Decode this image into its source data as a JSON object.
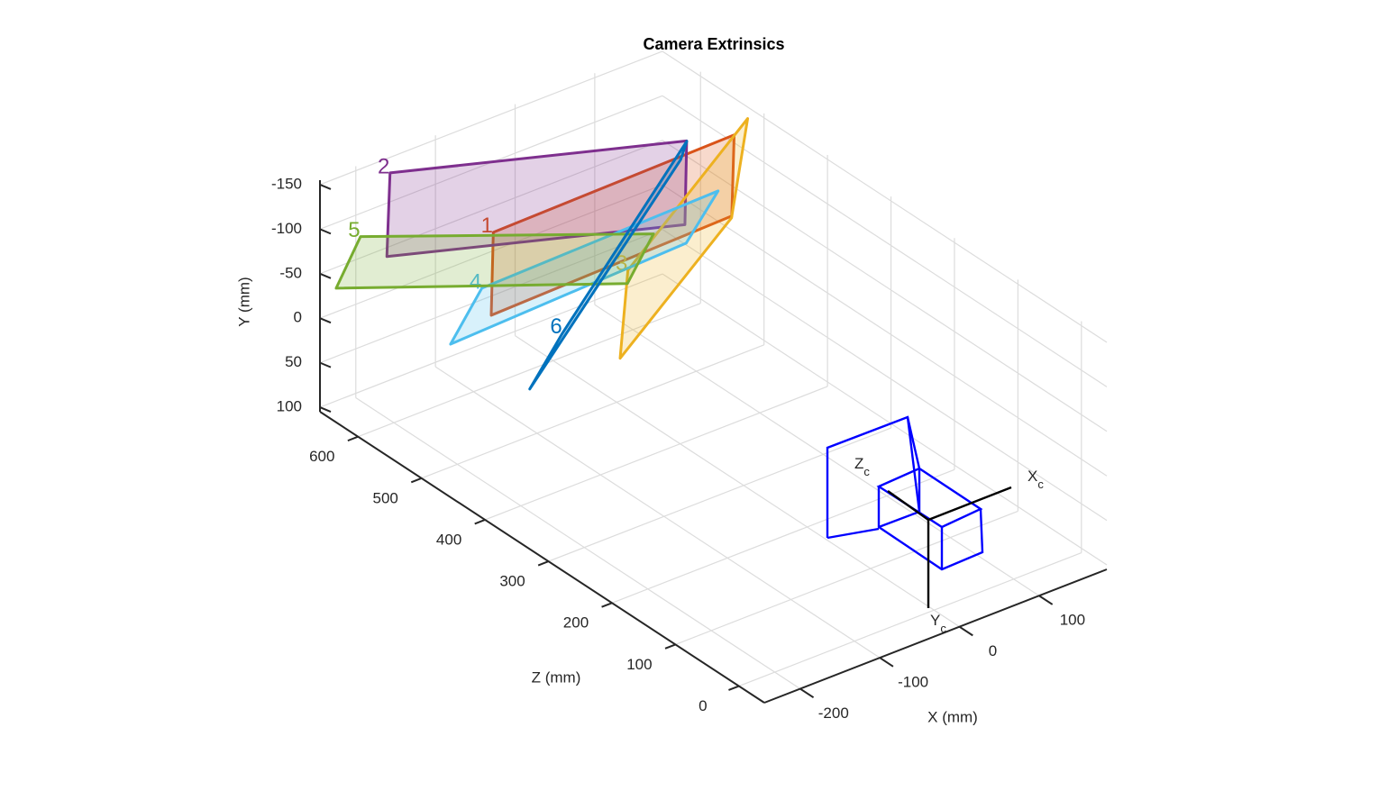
{
  "chart_data": {
    "type": "plane3d",
    "title": "Camera Extrinsics",
    "xlabel": "X (mm)",
    "ylabel": "Y (mm)",
    "zlabel": "Z (mm)",
    "xlim": [
      -245,
      185
    ],
    "ylim": [
      -155,
      105
    ],
    "zlim": [
      -40,
      660
    ],
    "xticks": [
      -200,
      -100,
      0,
      100
    ],
    "yticks": [
      -150,
      -100,
      -50,
      0,
      50,
      100
    ],
    "zticks": [
      0,
      100,
      200,
      300,
      400,
      500,
      600
    ],
    "ydir": "reverse",
    "grid": true,
    "series": [
      {
        "name": "1",
        "color": "#d95319",
        "x": [
          -123,
          173,
          170,
          -128
        ],
        "y": [
          -110,
          -120,
          -30,
          -20
        ],
        "z": [
          540,
          532,
          532,
          537
        ]
      },
      {
        "name": "2",
        "color": "#7e2f8e",
        "x": [
          -165,
          107,
          112,
          -161
        ],
        "y": [
          -140,
          -140,
          -40,
          -40
        ],
        "z": [
          650,
          524,
          533,
          660
        ]
      },
      {
        "name": "3",
        "color": "#edb120",
        "x": [
          -9,
          182,
          157,
          -14
        ],
        "y": [
          -60,
          -140,
          -40,
          40
        ],
        "z": [
          471,
          522,
          516,
          477
        ]
      },
      {
        "name": "4",
        "color": "#4dbeee",
        "x": [
          -135,
          168,
          155,
          -152
        ],
        "y": [
          -50,
          -50,
          20,
          20
        ],
        "z": [
          543,
          551,
          585,
          571
        ]
      },
      {
        "name": "5",
        "color": "#77ac30",
        "x": [
          -222,
          12,
          -4,
          -239
        ],
        "y": [
          -100,
          -100,
          -40,
          -40
        ],
        "z": [
          625,
          457,
          478,
          642
        ]
      },
      {
        "name": "6",
        "color": "#0072bd",
        "x": [
          -72,
          96,
          101,
          -90
        ],
        "y": [
          0,
          -150,
          -120,
          70
        ],
        "z": [
          495,
          510,
          526,
          524
        ]
      }
    ],
    "camera_axes": [
      {
        "text": "X",
        "subscript": "c"
      },
      {
        "text": "Y",
        "subscript": "c"
      },
      {
        "text": "Z",
        "subscript": "c"
      }
    ]
  }
}
